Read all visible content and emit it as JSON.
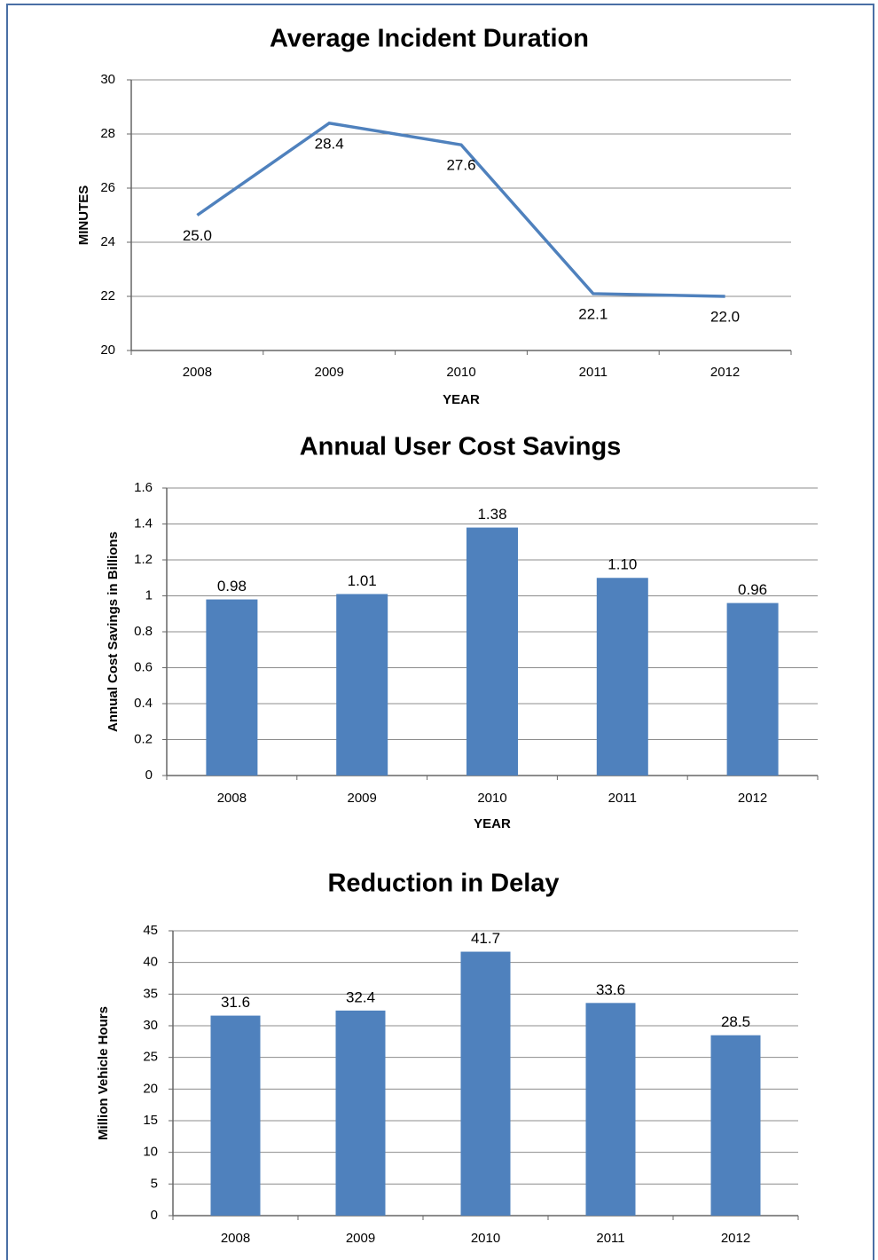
{
  "chart_data": [
    {
      "type": "line",
      "title": "Average Incident Duration",
      "y_label": "MINUTES",
      "x_label": "YEAR",
      "categories": [
        "2008",
        "2009",
        "2010",
        "2011",
        "2012"
      ],
      "values": [
        25.0,
        28.4,
        27.6,
        22.1,
        22.0
      ],
      "value_labels": [
        "25.0",
        "28.4",
        "27.6",
        "22.1",
        "22.0"
      ],
      "color": "#4f81bd",
      "ylim": [
        20,
        30
      ],
      "yticks": [
        20,
        22,
        24,
        26,
        28,
        30
      ],
      "grid": true
    },
    {
      "type": "bar",
      "title": "Annual User Cost Savings",
      "y_label": "Annual Cost Savings in Billions",
      "x_label": "YEAR",
      "categories": [
        "2008",
        "2009",
        "2010",
        "2011",
        "2012"
      ],
      "values": [
        0.98,
        1.01,
        1.38,
        1.1,
        0.96
      ],
      "value_labels": [
        "0.98",
        "1.01",
        "1.38",
        "1.10",
        "0.96"
      ],
      "color": "#4f81bd",
      "ylim": [
        0,
        1.6
      ],
      "yticks": [
        0,
        0.2,
        0.4,
        0.6,
        0.8,
        1,
        1.2,
        1.4,
        1.6
      ],
      "grid": true
    },
    {
      "type": "bar",
      "title": "Reduction in Delay",
      "y_label": "Million Vehicle Hours",
      "categories": [
        "2008",
        "2009",
        "2010",
        "2011",
        "2012"
      ],
      "values": [
        31.6,
        32.4,
        41.7,
        33.6,
        28.5
      ],
      "color": "#4f81bd",
      "ylim": [
        0,
        45
      ],
      "yticks": [
        0,
        5,
        10,
        15,
        20,
        25,
        30,
        35,
        40,
        45
      ],
      "grid": true
    }
  ]
}
